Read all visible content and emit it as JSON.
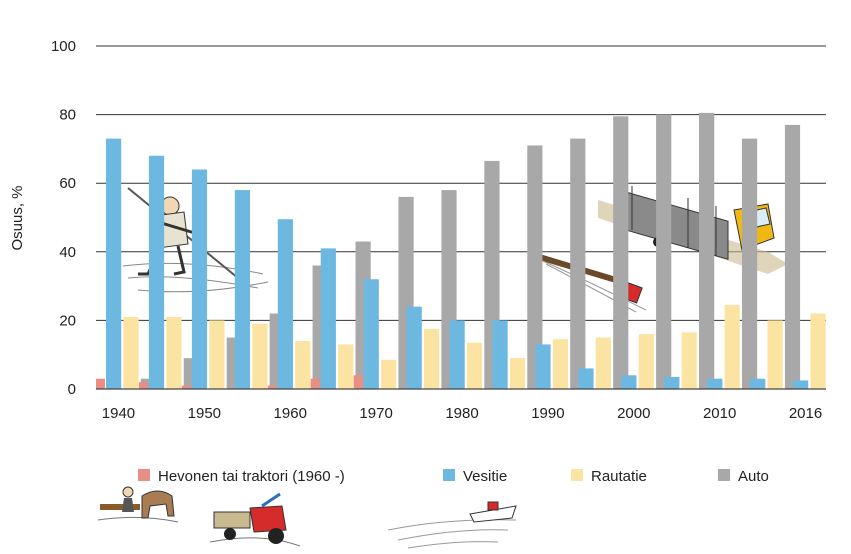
{
  "chart_data": {
    "type": "bar",
    "title": "",
    "xlabel": "",
    "ylabel": "Osuus, %",
    "ylim": [
      0,
      100
    ],
    "yticks": [
      "0",
      "20",
      "40",
      "60",
      "80",
      "100"
    ],
    "x_tick_labels": [
      "1940",
      "1950",
      "1960",
      "1970",
      "1980",
      "1990",
      "2000",
      "2010",
      "2016"
    ],
    "categories": [
      "1940",
      "1945",
      "1950",
      "1955",
      "1960",
      "1965",
      "1970",
      "1975",
      "1980",
      "1985",
      "1990",
      "1995",
      "2000",
      "2005",
      "2010",
      "2013",
      "2016"
    ],
    "grid": true,
    "legend_position": "bottom",
    "series": [
      {
        "name": "Hevonen tai traktori (1960 -)",
        "color": "#e88e86",
        "values": [
          3,
          2,
          1,
          0,
          1,
          3,
          4,
          0,
          0,
          0,
          0,
          0,
          0,
          0,
          0,
          0,
          0
        ]
      },
      {
        "name": "Vesitie",
        "color": "#6db8e1",
        "values": [
          73,
          68,
          64,
          58,
          49.5,
          41,
          32,
          24,
          20,
          20,
          13,
          6,
          4,
          3.5,
          3,
          3,
          2.5
        ]
      },
      {
        "name": "Rautatie",
        "color": "#fbe3a2",
        "values": [
          21,
          21,
          20,
          19,
          14,
          13,
          8.5,
          17.5,
          13.5,
          9,
          14.5,
          15,
          16,
          16.5,
          24.5,
          20,
          22
        ]
      },
      {
        "name": "Auto",
        "color": "#a8a8a8",
        "values": [
          3,
          9,
          15,
          22,
          36,
          43,
          56,
          58,
          66.5,
          71,
          73,
          79.5,
          80,
          80.5,
          73,
          77,
          76
        ]
      }
    ]
  },
  "illustrations": {
    "worker": "log-floater-icon",
    "train": "timber-train-icon",
    "truck": "timber-truck-icon",
    "horse": "horse-logging-icon",
    "tractor": "tractor-icon",
    "tug": "tugboat-icon"
  }
}
